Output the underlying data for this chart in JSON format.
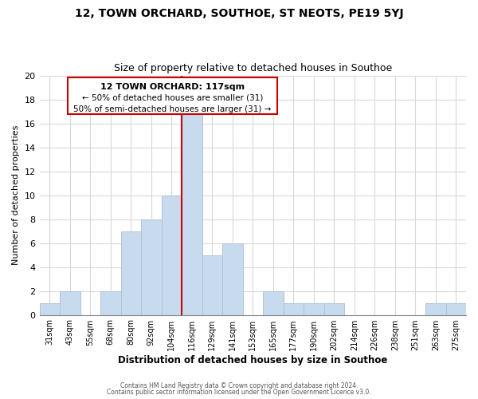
{
  "title": "12, TOWN ORCHARD, SOUTHOE, ST NEOTS, PE19 5YJ",
  "subtitle": "Size of property relative to detached houses in Southoe",
  "xlabel": "Distribution of detached houses by size in Southoe",
  "ylabel": "Number of detached properties",
  "bar_labels": [
    "31sqm",
    "43sqm",
    "55sqm",
    "68sqm",
    "80sqm",
    "92sqm",
    "104sqm",
    "116sqm",
    "129sqm",
    "141sqm",
    "153sqm",
    "165sqm",
    "177sqm",
    "190sqm",
    "202sqm",
    "214sqm",
    "226sqm",
    "238sqm",
    "251sqm",
    "263sqm",
    "275sqm"
  ],
  "bar_values": [
    1,
    2,
    0,
    2,
    7,
    8,
    10,
    17,
    5,
    6,
    0,
    2,
    1,
    1,
    1,
    0,
    0,
    0,
    0,
    1,
    1
  ],
  "bar_color": "#c8daed",
  "bar_edge_color": "#b0c4d8",
  "vline_index": 7,
  "vline_color": "#cc0000",
  "ylim": [
    0,
    20
  ],
  "yticks": [
    0,
    2,
    4,
    6,
    8,
    10,
    12,
    14,
    16,
    18,
    20
  ],
  "annotation_text_line1": "12 TOWN ORCHARD: 117sqm",
  "annotation_text_line2": "← 50% of detached houses are smaller (31)",
  "annotation_text_line3": "50% of semi-detached houses are larger (31) →",
  "footer_line1": "Contains HM Land Registry data © Crown copyright and database right 2024.",
  "footer_line2": "Contains public sector information licensed under the Open Government Licence v3.0.",
  "background_color": "#ffffff",
  "grid_color": "#d8d8d8"
}
